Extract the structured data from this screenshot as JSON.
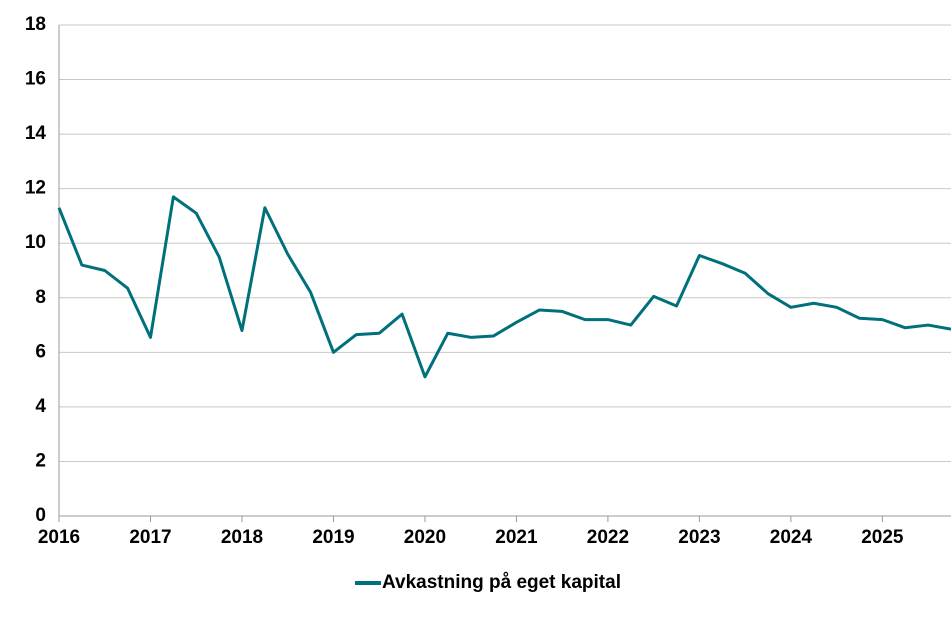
{
  "chart_data": {
    "type": "line",
    "x": [
      2016,
      2016.25,
      2016.5,
      2016.75,
      2017,
      2017.25,
      2017.5,
      2017.75,
      2018,
      2018.25,
      2018.5,
      2018.75,
      2019,
      2019.25,
      2019.5,
      2019.75,
      2020,
      2020.25,
      2020.5,
      2020.75,
      2021,
      2021.25,
      2021.5,
      2021.75,
      2022,
      2022.25,
      2022.5,
      2022.75,
      2023,
      2023.25,
      2023.5,
      2023.75,
      2024,
      2024.25,
      2024.5,
      2024.75,
      2025,
      2025.25,
      2025.5,
      2025.75
    ],
    "series": [
      {
        "name": "Avkastning på eget kapital",
        "color": "#00707a",
        "values": [
          11.3,
          9.2,
          9.0,
          8.35,
          6.55,
          11.7,
          11.1,
          9.5,
          6.8,
          11.3,
          9.6,
          8.2,
          6.0,
          6.65,
          6.7,
          7.4,
          5.1,
          6.7,
          6.55,
          6.6,
          7.1,
          7.55,
          7.5,
          7.2,
          7.2,
          7.0,
          8.05,
          7.7,
          9.55,
          9.25,
          8.9,
          8.15,
          7.65,
          7.8,
          7.65,
          7.25,
          7.2,
          6.9,
          7.0,
          6.85
        ]
      }
    ],
    "xlim": [
      2016,
      2025.75
    ],
    "xticks": [
      2016,
      2017,
      2018,
      2019,
      2020,
      2021,
      2022,
      2023,
      2024,
      2025
    ],
    "ylim": [
      0,
      18
    ],
    "yticks": [
      0,
      2,
      4,
      6,
      8,
      10,
      12,
      14,
      16,
      18
    ],
    "grid": true,
    "legend": "bottom"
  }
}
